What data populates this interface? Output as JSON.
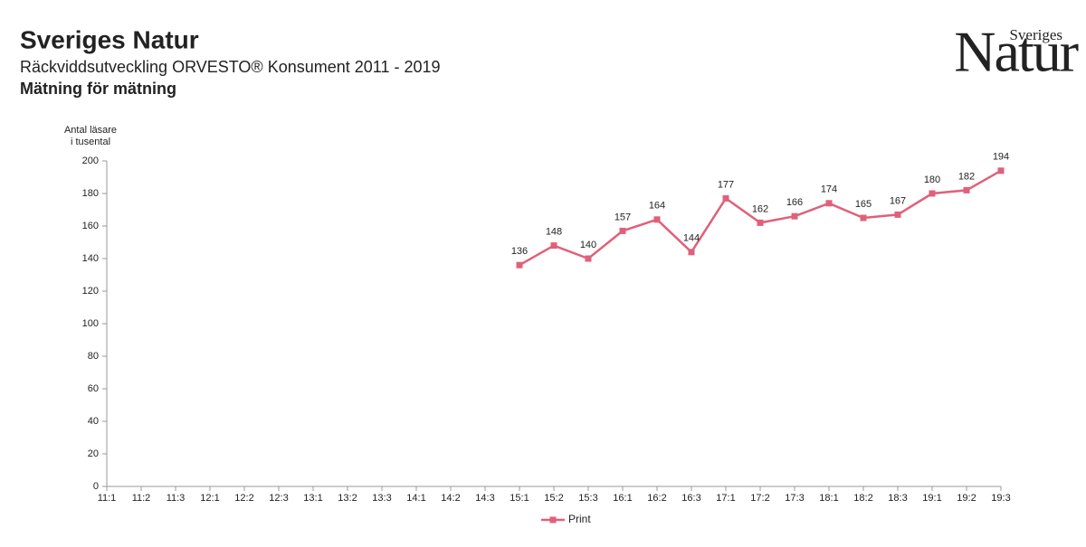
{
  "chart_data": {
    "type": "line",
    "title": "Sveriges Natur",
    "subtitle": "Räckviddsutveckling ORVESTO® Konsument 2011 - 2019",
    "subheading": "Mätning för mätning",
    "logo": {
      "small": "Sveriges",
      "large": "Natur"
    },
    "ylabel": [
      "Antal läsare",
      "i tusental"
    ],
    "categories": [
      "11:1",
      "11:2",
      "11:3",
      "12:1",
      "12:2",
      "12:3",
      "13:1",
      "13:2",
      "13:3",
      "14:1",
      "14:2",
      "14:3",
      "15:1",
      "15:2",
      "15:3",
      "16:1",
      "16:2",
      "16:3",
      "17:1",
      "17:2",
      "17:3",
      "18:1",
      "18:2",
      "18:3",
      "19:1",
      "19:2",
      "19:3"
    ],
    "series": [
      {
        "name": "Print",
        "color": "#e0607a",
        "values": [
          null,
          null,
          null,
          null,
          null,
          null,
          null,
          null,
          null,
          null,
          null,
          null,
          136,
          148,
          140,
          157,
          164,
          144,
          177,
          162,
          166,
          174,
          165,
          167,
          180,
          182,
          194
        ]
      }
    ],
    "ylim": [
      0,
      200
    ],
    "yticks": [
      0,
      20,
      40,
      60,
      80,
      100,
      120,
      140,
      160,
      180,
      200
    ],
    "grid": false,
    "legend": "bottom"
  }
}
